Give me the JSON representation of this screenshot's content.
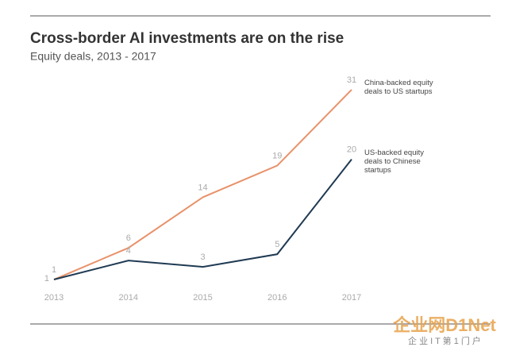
{
  "chart_data": {
    "type": "line",
    "title": "Cross-border AI investments are on the rise",
    "subtitle": "Equity deals, 2013 - 2017",
    "categories": [
      "2013",
      "2014",
      "2015",
      "2016",
      "2017"
    ],
    "series": [
      {
        "name": "China-backed equity deals to US startups",
        "color": "#e8926a",
        "values": [
          1,
          6,
          14,
          19,
          31
        ]
      },
      {
        "name": "US-backed equity deals to Chinese startups",
        "color": "#1f3a52",
        "values": [
          1,
          4,
          3,
          5,
          20
        ]
      }
    ],
    "ylim": [
      0,
      32
    ],
    "watermark": "企业网D1Net",
    "watermark_sub": "企 业 I T 第 1 门 户"
  }
}
